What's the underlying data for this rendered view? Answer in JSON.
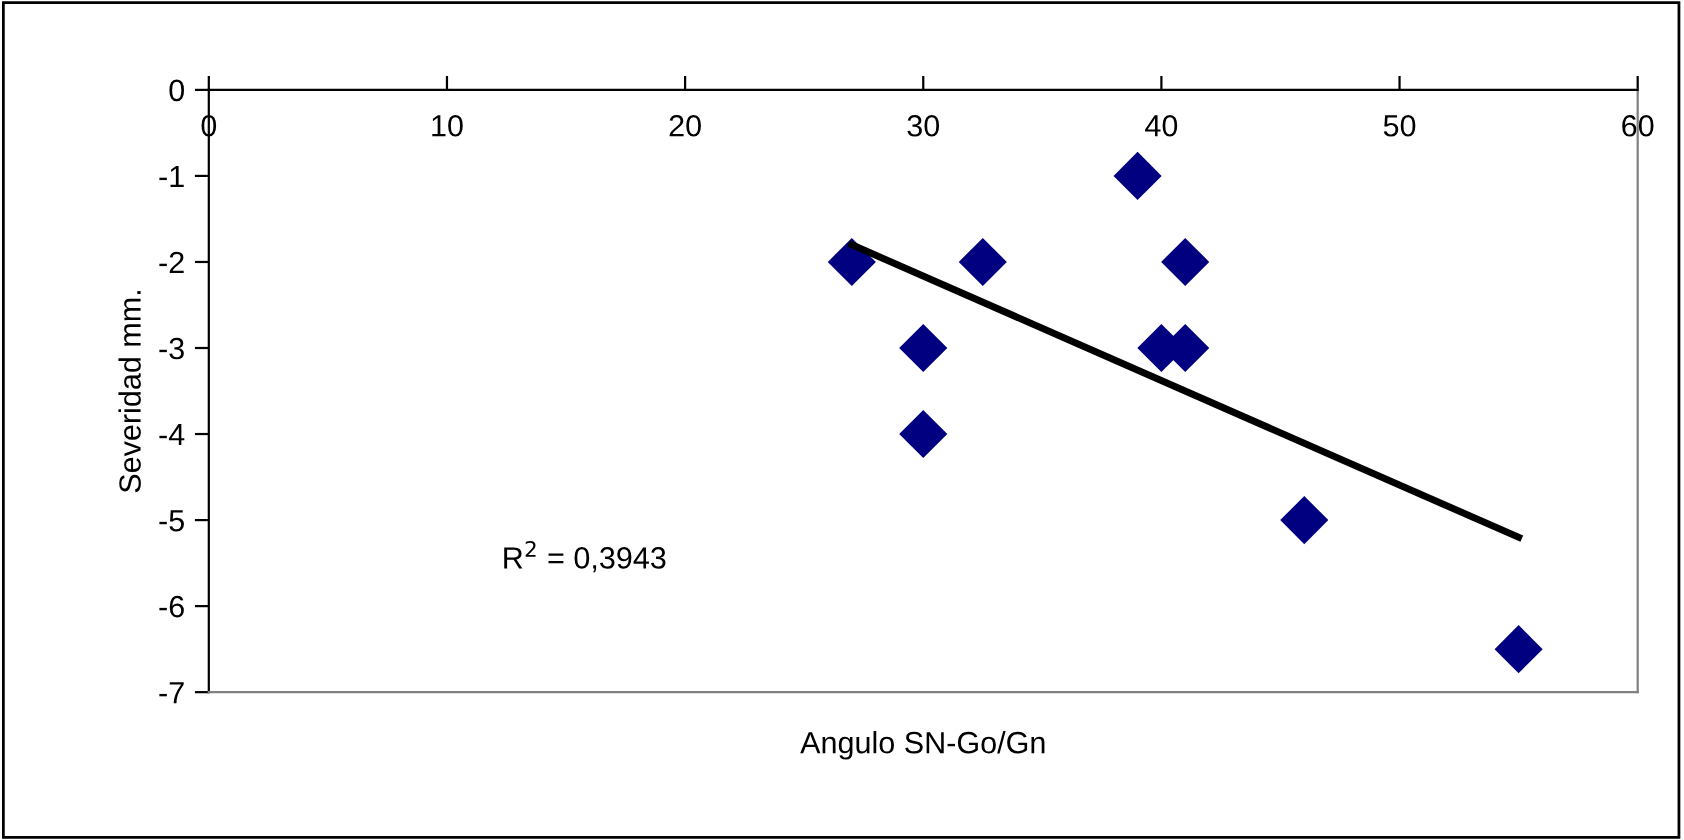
{
  "chart_data": {
    "type": "scatter",
    "xlabel": "Angulo SN-Go/Gn",
    "ylabel": "Severidad mm.",
    "xlim": [
      0,
      60
    ],
    "xticks": [
      0,
      10,
      20,
      30,
      40,
      50,
      60
    ],
    "ylim": [
      -7,
      0
    ],
    "yticks": [
      -7,
      -6,
      -5,
      -4,
      -3,
      -2,
      -1,
      0
    ],
    "grid": false,
    "legend": false,
    "marker": "diamond",
    "series": [
      {
        "color": "#000080",
        "x": [
          27,
          30,
          30,
          32.5,
          39,
          40,
          41,
          41,
          46,
          55
        ],
        "values": [
          -2,
          -3,
          -4,
          -2,
          -1,
          -3,
          -3,
          -2,
          -5,
          -6.5
        ]
      },
      {
        "type": "line",
        "color": "#000000",
        "marker": "none",
        "line_style": "solid",
        "x": [
          27,
          55
        ],
        "values": [
          -1.8,
          -5.2
        ]
      }
    ],
    "annotations": [
      "R$^{2}$ = 0,3943"
    ]
  }
}
